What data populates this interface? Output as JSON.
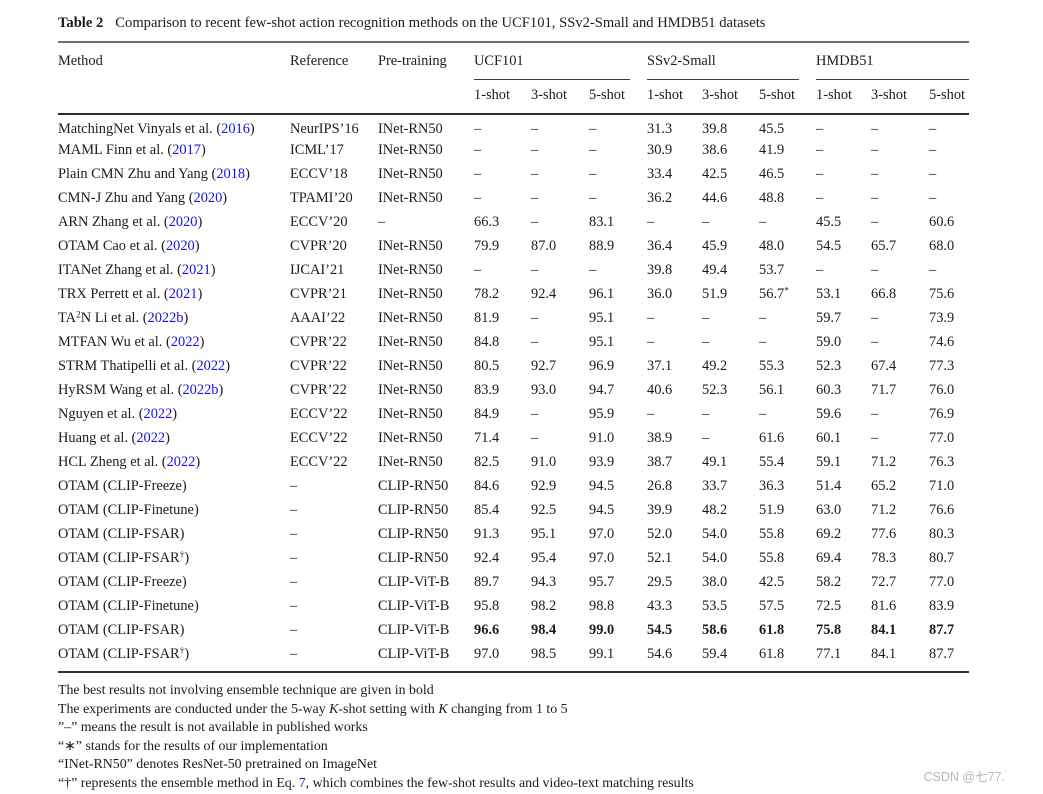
{
  "page": {
    "watermark": "CSDN @七77.",
    "link_color": "#1414dd",
    "text_color": "#1c1c1c",
    "background": "#ffffff"
  },
  "caption": {
    "segments": [
      {
        "t": "Table 2",
        "s": "b"
      },
      {
        "t": "Comparison to recent few-shot action recognition methods on the UCF101, SSv2-Small and HMDB51 datasets",
        "s": "n"
      }
    ]
  },
  "table": {
    "left_headers": [
      "Method",
      "Reference",
      "Pre-training"
    ],
    "groups": [
      "UCF101",
      "SSv2-Small",
      "HMDB51"
    ],
    "sub_headers": [
      "1-shot",
      "3-shot",
      "5-shot"
    ],
    "missing_symbol": "–",
    "rows": [
      {
        "method": [
          {
            "t": "MatchingNet Vinyals et al. (",
            "s": "n"
          },
          {
            "t": "2016",
            "s": "l"
          },
          {
            "t": ")",
            "s": "n"
          }
        ],
        "reference": "NeurIPS’16",
        "pretraining": "INet-RN50",
        "values": [
          "–",
          "–",
          "–",
          "31.3",
          "39.8",
          "45.5",
          "–",
          "–",
          "–"
        ],
        "bold": false
      },
      {
        "method": [
          {
            "t": "MAML Finn et al. (",
            "s": "n"
          },
          {
            "t": "2017",
            "s": "l"
          },
          {
            "t": ")",
            "s": "n"
          }
        ],
        "reference": "ICML’17",
        "pretraining": "INet-RN50",
        "values": [
          "–",
          "–",
          "–",
          "30.9",
          "38.6",
          "41.9",
          "–",
          "–",
          "–"
        ],
        "bold": false
      },
      {
        "method": [
          {
            "t": "Plain CMN Zhu and Yang (",
            "s": "n"
          },
          {
            "t": "2018",
            "s": "l"
          },
          {
            "t": ")",
            "s": "n"
          }
        ],
        "reference": "ECCV’18",
        "pretraining": "INet-RN50",
        "values": [
          "–",
          "–",
          "–",
          "33.4",
          "42.5",
          "46.5",
          "–",
          "–",
          "–"
        ],
        "bold": false
      },
      {
        "method": [
          {
            "t": "CMN-J Zhu and Yang (",
            "s": "n"
          },
          {
            "t": "2020",
            "s": "l"
          },
          {
            "t": ")",
            "s": "n"
          }
        ],
        "reference": "TPAMI’20",
        "pretraining": "INet-RN50",
        "values": [
          "–",
          "–",
          "–",
          "36.2",
          "44.6",
          "48.8",
          "–",
          "–",
          "–"
        ],
        "bold": false
      },
      {
        "method": [
          {
            "t": "ARN Zhang et al. (",
            "s": "n"
          },
          {
            "t": "2020",
            "s": "l"
          },
          {
            "t": ")",
            "s": "n"
          }
        ],
        "reference": "ECCV’20",
        "pretraining": "–",
        "values": [
          "66.3",
          "–",
          "83.1",
          "–",
          "–",
          "–",
          "45.5",
          "–",
          "60.6"
        ],
        "bold": false
      },
      {
        "method": [
          {
            "t": "OTAM Cao et al. (",
            "s": "n"
          },
          {
            "t": "2020",
            "s": "l"
          },
          {
            "t": ")",
            "s": "n"
          }
        ],
        "reference": "CVPR’20",
        "pretraining": "INet-RN50",
        "values": [
          "79.9",
          "87.0",
          "88.9",
          "36.4",
          "45.9",
          "48.0",
          "54.5",
          "65.7",
          "68.0"
        ],
        "bold": false
      },
      {
        "method": [
          {
            "t": "ITANet Zhang et al. (",
            "s": "n"
          },
          {
            "t": "2021",
            "s": "l"
          },
          {
            "t": ")",
            "s": "n"
          }
        ],
        "reference": "IJCAI’21",
        "pretraining": "INet-RN50",
        "values": [
          "–",
          "–",
          "–",
          "39.8",
          "49.4",
          "53.7",
          "–",
          "–",
          "–"
        ],
        "bold": false
      },
      {
        "method": [
          {
            "t": "TRX Perrett et al. (",
            "s": "n"
          },
          {
            "t": "2021",
            "s": "l"
          },
          {
            "t": ")",
            "s": "n"
          }
        ],
        "reference": "CVPR’21",
        "pretraining": "INet-RN50",
        "values": [
          "78.2",
          "92.4",
          "96.1",
          "36.0",
          "51.9",
          "56.7*",
          "53.1",
          "66.8",
          "75.6"
        ],
        "bold": false
      },
      {
        "method": [
          {
            "t": "TA",
            "s": "n"
          },
          {
            "t": "2",
            "s": "sup"
          },
          {
            "t": "N Li et al. (",
            "s": "n"
          },
          {
            "t": "2022b",
            "s": "l"
          },
          {
            "t": ")",
            "s": "n"
          }
        ],
        "reference": "AAAI’22",
        "pretraining": "INet-RN50",
        "values": [
          "81.9",
          "–",
          "95.1",
          "–",
          "–",
          "–",
          "59.7",
          "–",
          "73.9"
        ],
        "bold": false
      },
      {
        "method": [
          {
            "t": "MTFAN Wu et al. (",
            "s": "n"
          },
          {
            "t": "2022",
            "s": "l"
          },
          {
            "t": ")",
            "s": "n"
          }
        ],
        "reference": "CVPR’22",
        "pretraining": "INet-RN50",
        "values": [
          "84.8",
          "–",
          "95.1",
          "–",
          "–",
          "–",
          "59.0",
          "–",
          "74.6"
        ],
        "bold": false
      },
      {
        "method": [
          {
            "t": "STRM Thatipelli et al. (",
            "s": "n"
          },
          {
            "t": "2022",
            "s": "l"
          },
          {
            "t": ")",
            "s": "n"
          }
        ],
        "reference": "CVPR’22",
        "pretraining": "INet-RN50",
        "values": [
          "80.5",
          "92.7",
          "96.9",
          "37.1",
          "49.2",
          "55.3",
          "52.3",
          "67.4",
          "77.3"
        ],
        "bold": false
      },
      {
        "method": [
          {
            "t": "HyRSM Wang et al. (",
            "s": "n"
          },
          {
            "t": "2022b",
            "s": "l"
          },
          {
            "t": ")",
            "s": "n"
          }
        ],
        "reference": "CVPR’22",
        "pretraining": "INet-RN50",
        "values": [
          "83.9",
          "93.0",
          "94.7",
          "40.6",
          "52.3",
          "56.1",
          "60.3",
          "71.7",
          "76.0"
        ],
        "bold": false
      },
      {
        "method": [
          {
            "t": "Nguyen et al. (",
            "s": "n"
          },
          {
            "t": "2022",
            "s": "l"
          },
          {
            "t": ")",
            "s": "n"
          }
        ],
        "reference": "ECCV’22",
        "pretraining": "INet-RN50",
        "values": [
          "84.9",
          "–",
          "95.9",
          "–",
          "–",
          "–",
          "59.6",
          "–",
          "76.9"
        ],
        "bold": false
      },
      {
        "method": [
          {
            "t": "Huang et al. (",
            "s": "n"
          },
          {
            "t": "2022",
            "s": "l"
          },
          {
            "t": ")",
            "s": "n"
          }
        ],
        "reference": "ECCV’22",
        "pretraining": "INet-RN50",
        "values": [
          "71.4",
          "–",
          "91.0",
          "38.9",
          "–",
          "61.6",
          "60.1",
          "–",
          "77.0"
        ],
        "bold": false
      },
      {
        "method": [
          {
            "t": "HCL Zheng et al. (",
            "s": "n"
          },
          {
            "t": "2022",
            "s": "l"
          },
          {
            "t": ")",
            "s": "n"
          }
        ],
        "reference": "ECCV’22",
        "pretraining": "INet-RN50",
        "values": [
          "82.5",
          "91.0",
          "93.9",
          "38.7",
          "49.1",
          "55.4",
          "59.1",
          "71.2",
          "76.3"
        ],
        "bold": false
      },
      {
        "method": [
          {
            "t": "OTAM (CLIP-Freeze)",
            "s": "n"
          }
        ],
        "reference": "–",
        "pretraining": "CLIP-RN50",
        "values": [
          "84.6",
          "92.9",
          "94.5",
          "26.8",
          "33.7",
          "36.3",
          "51.4",
          "65.2",
          "71.0"
        ],
        "bold": false
      },
      {
        "method": [
          {
            "t": "OTAM (CLIP-Finetune)",
            "s": "n"
          }
        ],
        "reference": "–",
        "pretraining": "CLIP-RN50",
        "values": [
          "85.4",
          "92.5",
          "94.5",
          "39.9",
          "48.2",
          "51.9",
          "63.0",
          "71.2",
          "76.6"
        ],
        "bold": false
      },
      {
        "method": [
          {
            "t": "OTAM (CLIP-FSAR)",
            "s": "n"
          }
        ],
        "reference": "–",
        "pretraining": "CLIP-RN50",
        "values": [
          "91.3",
          "95.1",
          "97.0",
          "52.0",
          "54.0",
          "55.8",
          "69.2",
          "77.6",
          "80.3"
        ],
        "bold": false
      },
      {
        "method": [
          {
            "t": "OTAM (CLIP-FSAR",
            "s": "n"
          },
          {
            "t": "†",
            "s": "sup"
          },
          {
            "t": ")",
            "s": "n"
          }
        ],
        "reference": "–",
        "pretraining": "CLIP-RN50",
        "values": [
          "92.4",
          "95.4",
          "97.0",
          "52.1",
          "54.0",
          "55.8",
          "69.4",
          "78.3",
          "80.7"
        ],
        "bold": false
      },
      {
        "method": [
          {
            "t": "OTAM (CLIP-Freeze)",
            "s": "n"
          }
        ],
        "reference": "–",
        "pretraining": "CLIP-ViT-B",
        "values": [
          "89.7",
          "94.3",
          "95.7",
          "29.5",
          "38.0",
          "42.5",
          "58.2",
          "72.7",
          "77.0"
        ],
        "bold": false
      },
      {
        "method": [
          {
            "t": "OTAM (CLIP-Finetune)",
            "s": "n"
          }
        ],
        "reference": "–",
        "pretraining": "CLIP-ViT-B",
        "values": [
          "95.8",
          "98.2",
          "98.8",
          "43.3",
          "53.5",
          "57.5",
          "72.5",
          "81.6",
          "83.9"
        ],
        "bold": false
      },
      {
        "method": [
          {
            "t": "OTAM (CLIP-FSAR)",
            "s": "n"
          }
        ],
        "reference": "–",
        "pretraining": "CLIP-ViT-B",
        "values": [
          "96.6",
          "98.4",
          "99.0",
          "54.5",
          "58.6",
          "61.8",
          "75.8",
          "84.1",
          "87.7"
        ],
        "bold": true
      },
      {
        "method": [
          {
            "t": "OTAM (CLIP-FSAR",
            "s": "n"
          },
          {
            "t": "†",
            "s": "sup"
          },
          {
            "t": ")",
            "s": "n"
          }
        ],
        "reference": "–",
        "pretraining": "CLIP-ViT-B",
        "values": [
          "97.0",
          "98.5",
          "99.1",
          "54.6",
          "59.4",
          "61.8",
          "77.1",
          "84.1",
          "87.7"
        ],
        "bold": false
      }
    ]
  },
  "footnotes": [
    {
      "segments": [
        {
          "t": "The best results not involving ensemble technique are given in bold",
          "s": "n"
        }
      ]
    },
    {
      "segments": [
        {
          "t": "The experiments are conducted under the 5-way ",
          "s": "n"
        },
        {
          "t": "K",
          "s": "i"
        },
        {
          "t": "-shot setting with ",
          "s": "n"
        },
        {
          "t": "K",
          "s": "i"
        },
        {
          "t": " changing from 1 to 5",
          "s": "n"
        }
      ]
    },
    {
      "segments": [
        {
          "t": "”–” means the result is not available in published works",
          "s": "n"
        }
      ]
    },
    {
      "segments": [
        {
          "t": "“∗” stands for the results of our implementation",
          "s": "n"
        }
      ]
    },
    {
      "segments": [
        {
          "t": "“INet-RN50” denotes ResNet-50 pretrained on ImageNet",
          "s": "n"
        }
      ]
    },
    {
      "segments": [
        {
          "t": "“†” represents the ensemble method in Eq. ",
          "s": "n"
        },
        {
          "t": "7",
          "s": "l"
        },
        {
          "t": ", which combines the few-shot results and video-text matching results",
          "s": "n"
        }
      ]
    }
  ]
}
